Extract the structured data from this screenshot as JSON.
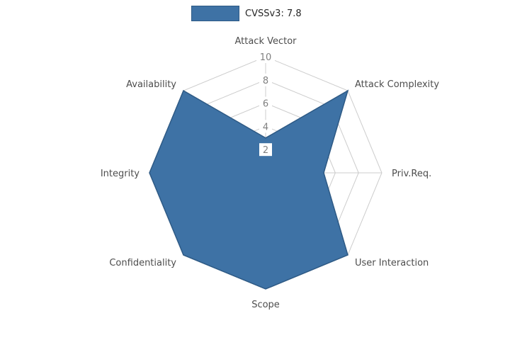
{
  "legend": {
    "label": "CVSSv3: 7.8"
  },
  "chart_data": {
    "type": "radar",
    "title": "",
    "categories": [
      "Attack Vector",
      "Attack Complexity",
      "Priv.Req.",
      "User Interaction",
      "Scope",
      "Confidentiality",
      "Integrity",
      "Availability"
    ],
    "series": [
      {
        "name": "CVSSv3: 7.8",
        "values": [
          3,
          10,
          5,
          10,
          10,
          10,
          10,
          10
        ]
      }
    ],
    "ticks": [
      2,
      4,
      6,
      8,
      10
    ],
    "rmax": 10,
    "grid": true,
    "legend_position": "top-center",
    "colors": {
      "fill": "#3e72a5",
      "edge": "#2e5a85",
      "grid": "#cccccc",
      "axis_label": "#4d4d4d",
      "tick_label": "#808080",
      "legend_text": "#262626",
      "background": "#ffffff"
    }
  }
}
